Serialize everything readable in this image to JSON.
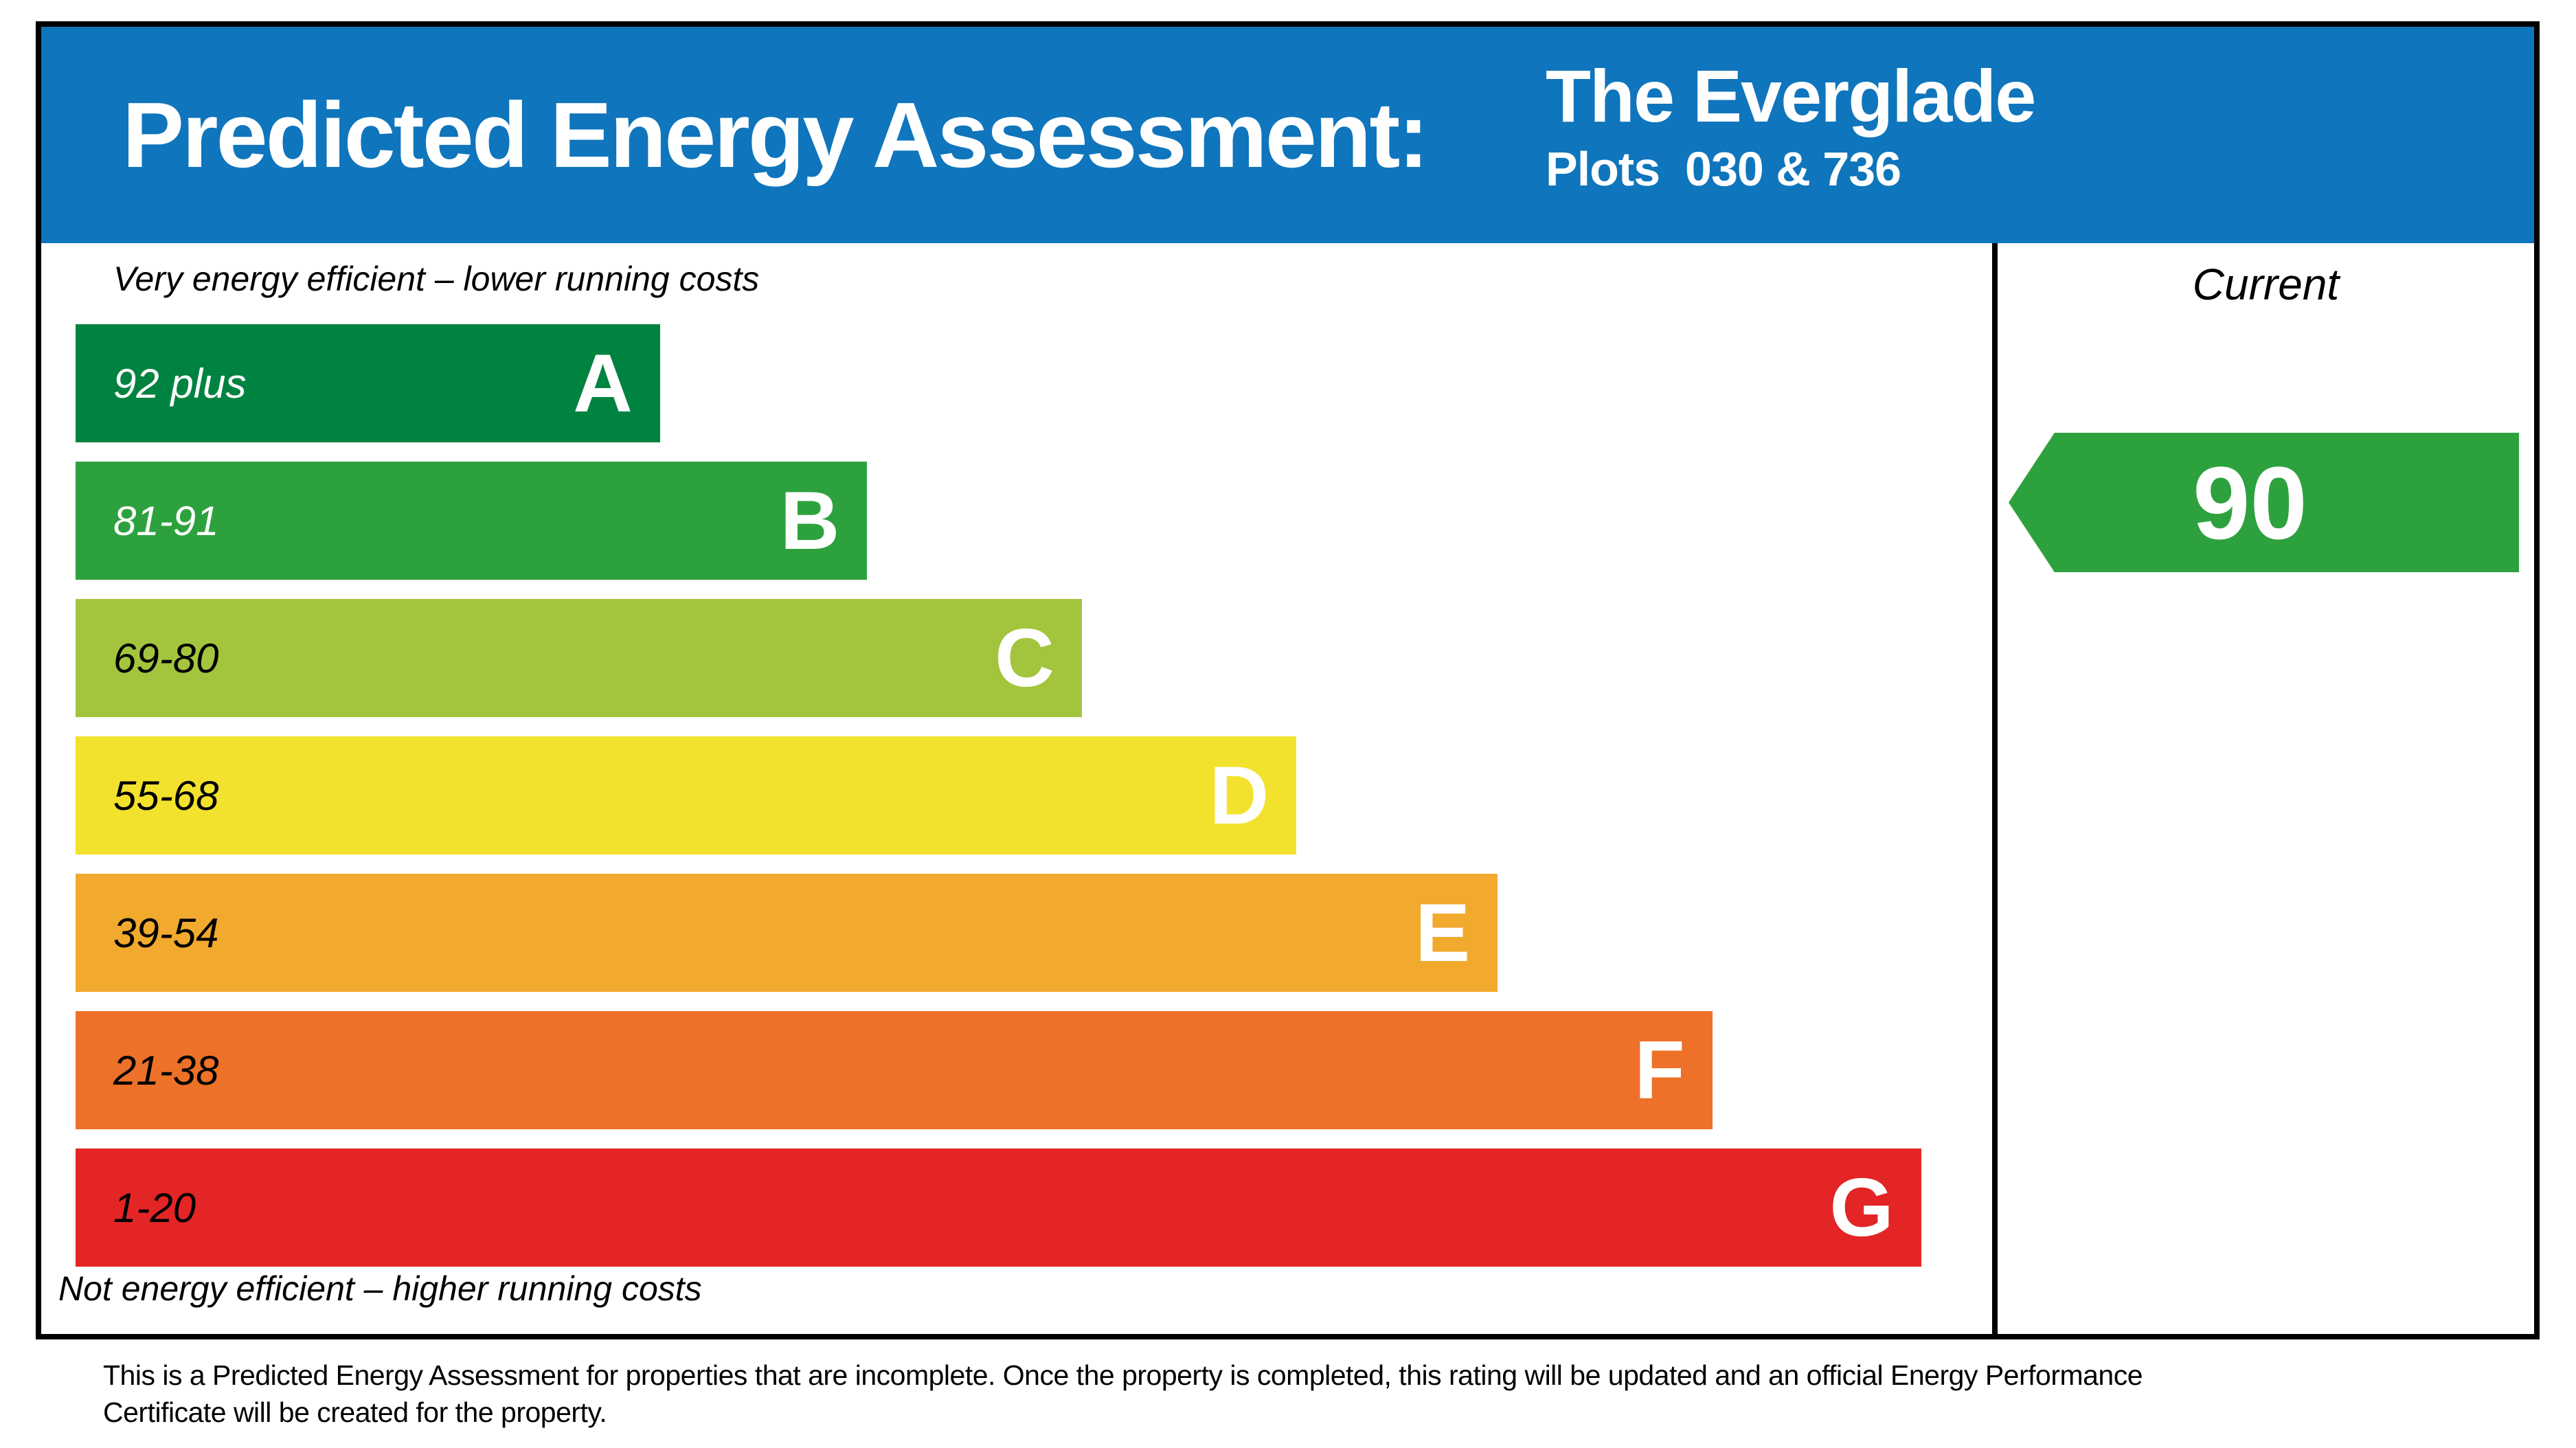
{
  "header": {
    "title": "Predicted Energy Assessment:",
    "property_name": "The Everglade",
    "plots": "Plots  030 & 736",
    "background_color": "#0f75bc"
  },
  "chart": {
    "top_label": "Very energy efficient – lower running costs",
    "bottom_label": "Not energy efficient – higher running costs",
    "current_column_label": "Current",
    "bands": [
      {
        "letter": "A",
        "range": "92 plus",
        "color": "#008340",
        "text_color": "#ffffff",
        "width_pct": 30.5
      },
      {
        "letter": "B",
        "range": "81-91",
        "color": "#2da13d",
        "text_color": "#ffffff",
        "width_pct": 41.3
      },
      {
        "letter": "C",
        "range": "69-80",
        "color": "#a3c53e",
        "text_color": "#000000",
        "width_pct": 52.5
      },
      {
        "letter": "D",
        "range": "55-68",
        "color": "#f3e22d",
        "text_color": "#000000",
        "width_pct": 63.7
      },
      {
        "letter": "E",
        "range": "39-54",
        "color": "#f1a92e",
        "text_color": "#000000",
        "width_pct": 74.2
      },
      {
        "letter": "F",
        "range": "21-38",
        "color": "#ed7128",
        "text_color": "#000000",
        "width_pct": 85.4
      },
      {
        "letter": "G",
        "range": "1-20",
        "color": "#e32526",
        "text_color": "#000000",
        "width_pct": 96.3
      }
    ],
    "current_rating": {
      "value": "90",
      "band": "B",
      "color": "#2da13d"
    }
  },
  "footer": {
    "lines": [
      "This is a Predicted Energy Assessment for properties that are incomplete. Once the property is completed, this rating will be updated and an official Energy Performance",
      "Certificate will be created for the property."
    ]
  },
  "chart_data": {
    "type": "bar",
    "title": "Predicted Energy Assessment",
    "property": "The Everglade",
    "plots": "Plots  030 & 736",
    "categories": [
      "A",
      "B",
      "C",
      "D",
      "E",
      "F",
      "G"
    ],
    "band_ranges": [
      "92 plus",
      "81-91",
      "69-80",
      "55-68",
      "39-54",
      "21-38",
      "1-20"
    ],
    "bar_relative_widths_pct": [
      30.5,
      41.3,
      52.5,
      63.7,
      74.2,
      85.4,
      96.3
    ],
    "bar_colors": [
      "#008340",
      "#2da13d",
      "#a3c53e",
      "#f3e22d",
      "#f1a92e",
      "#ed7128",
      "#e32526"
    ],
    "current": {
      "value": 90,
      "band": "B",
      "column_label": "Current",
      "arrow_color": "#2da13d"
    },
    "top_annotation": "Very energy efficient – lower running costs",
    "bottom_annotation": "Not energy efficient – higher running costs",
    "legend_position": "none",
    "grid": false
  }
}
